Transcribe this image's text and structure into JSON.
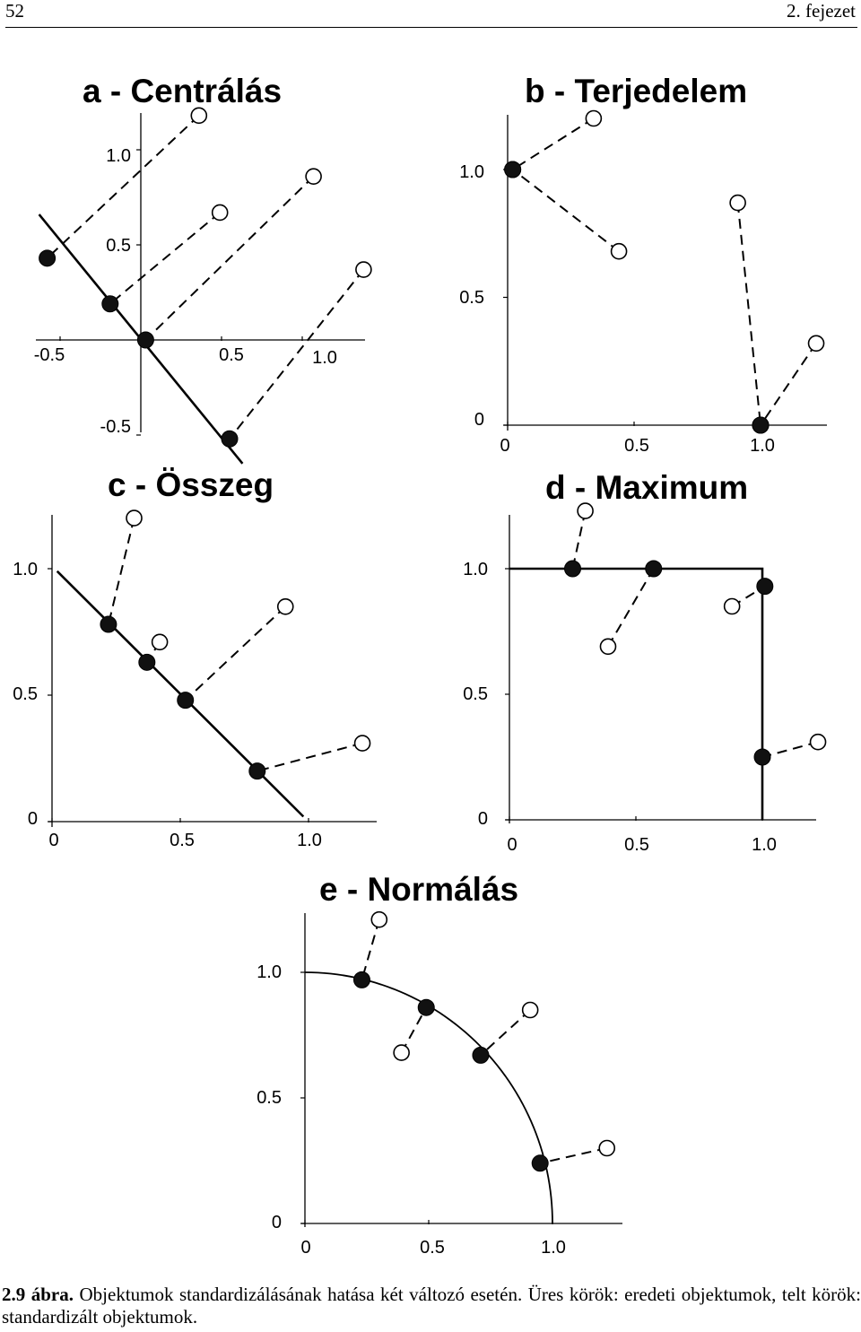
{
  "header": {
    "page_number": "52",
    "chapter": "2. fejezet"
  },
  "caption": {
    "label": "2.9 ábra.",
    "text": "Objektumok standardizálásának hatása két változó esetén. Üres körök: eredeti objektumok, telt körök: standardizált objektumok."
  },
  "chart_data": [
    {
      "id": "a",
      "type": "scatter",
      "title": "a - Centrálás",
      "x_ticks": [
        "-0.5",
        "0.5",
        "1.0"
      ],
      "y_ticks": [
        "1.0",
        "0.5",
        "-0.5"
      ],
      "xlim": [
        -0.6,
        1.27
      ],
      "ylim": [
        -0.58,
        1.22
      ],
      "reference": {
        "kind": "line",
        "from": [
          -0.63,
          0.66
        ],
        "to": [
          0.63,
          -0.65
        ]
      },
      "pairs": [
        {
          "original": [
            0.36,
            1.18
          ],
          "standardized": [
            -0.58,
            0.43
          ]
        },
        {
          "original": [
            0.49,
            0.67
          ],
          "standardized": [
            -0.19,
            0.19
          ]
        },
        {
          "original": [
            1.07,
            0.86
          ],
          "standardized": [
            0.03,
            0.0
          ]
        },
        {
          "original": [
            1.38,
            0.37
          ],
          "standardized": [
            0.55,
            -0.52
          ]
        }
      ]
    },
    {
      "id": "b",
      "type": "scatter",
      "title": "b - Terjedelem",
      "x_ticks": [
        "0",
        "0.5",
        "1.0"
      ],
      "y_ticks": [
        "1.0",
        "0.5",
        "0"
      ],
      "xlim": [
        0,
        1.26
      ],
      "ylim": [
        0,
        1.22
      ],
      "reference": null,
      "pairs": [
        {
          "original": [
            0.34,
            1.2
          ],
          "standardized": [
            0.02,
            1.0
          ]
        },
        {
          "original": [
            0.44,
            0.68
          ],
          "standardized": [
            0.02,
            1.0
          ]
        },
        {
          "original": [
            0.91,
            0.87
          ],
          "standardized": [
            1.0,
            0.0
          ]
        },
        {
          "original": [
            1.22,
            0.32
          ],
          "standardized": [
            1.0,
            0.0
          ]
        }
      ]
    },
    {
      "id": "c",
      "type": "scatter",
      "title": "c - Összeg",
      "x_ticks": [
        "0",
        "0.5",
        "1.0"
      ],
      "y_ticks": [
        "1.0",
        "0.5",
        "0"
      ],
      "xlim": [
        0,
        1.26
      ],
      "ylim": [
        0,
        1.22
      ],
      "reference": {
        "kind": "line",
        "from": [
          0.02,
          0.99
        ],
        "to": [
          0.98,
          0.02
        ]
      },
      "pairs": [
        {
          "original": [
            0.32,
            1.2
          ],
          "standardized": [
            0.22,
            0.78
          ]
        },
        {
          "original": [
            0.42,
            0.71
          ],
          "standardized": [
            0.37,
            0.63
          ]
        },
        {
          "original": [
            0.91,
            0.85
          ],
          "standardized": [
            0.52,
            0.48
          ]
        },
        {
          "original": [
            1.21,
            0.31
          ],
          "standardized": [
            0.8,
            0.2
          ]
        }
      ]
    },
    {
      "id": "d",
      "type": "scatter",
      "title": "d - Maximum",
      "x_ticks": [
        "0",
        "0.5",
        "1.0"
      ],
      "y_ticks": [
        "1.0",
        "0.5",
        "0"
      ],
      "xlim": [
        0,
        1.25
      ],
      "ylim": [
        0,
        1.22
      ],
      "reference": {
        "kind": "polyline",
        "points": [
          [
            0,
            1.0
          ],
          [
            1.0,
            1.0
          ],
          [
            1.0,
            0.0
          ]
        ]
      },
      "pairs": [
        {
          "original": [
            0.3,
            1.23
          ],
          "standardized": [
            0.25,
            1.0
          ]
        },
        {
          "original": [
            0.39,
            0.69
          ],
          "standardized": [
            0.57,
            1.0
          ]
        },
        {
          "original": [
            0.88,
            0.85
          ],
          "standardized": [
            1.01,
            0.93
          ]
        },
        {
          "original": [
            1.22,
            0.31
          ],
          "standardized": [
            1.0,
            0.25
          ]
        }
      ]
    },
    {
      "id": "e",
      "type": "scatter",
      "title": "e - Normálás",
      "x_ticks": [
        "0",
        "0.5",
        "1.0"
      ],
      "y_ticks": [
        "1.0",
        "0.5",
        "0"
      ],
      "xlim": [
        0,
        1.25
      ],
      "ylim": [
        0,
        1.22
      ],
      "reference": {
        "kind": "arc",
        "radius": 1.0
      },
      "pairs": [
        {
          "original": [
            0.3,
            1.21
          ],
          "standardized": [
            0.23,
            0.97
          ]
        },
        {
          "original": [
            0.39,
            0.68
          ],
          "standardized": [
            0.49,
            0.86
          ]
        },
        {
          "original": [
            0.91,
            0.85
          ],
          "standardized": [
            0.71,
            0.67
          ]
        },
        {
          "original": [
            1.22,
            0.3
          ],
          "standardized": [
            0.95,
            0.24
          ]
        }
      ]
    }
  ]
}
